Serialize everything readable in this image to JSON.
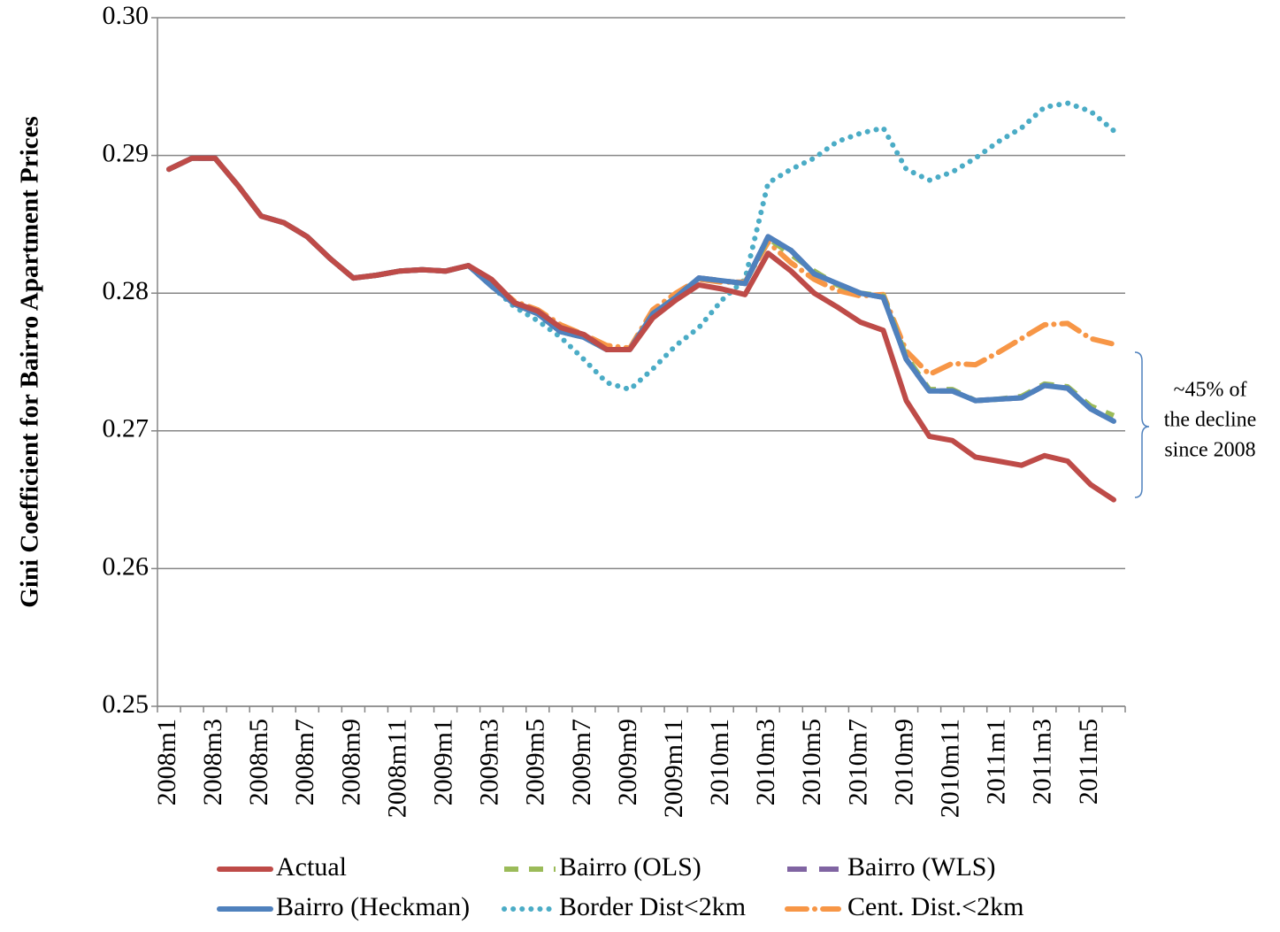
{
  "chart_data": {
    "type": "line",
    "y_label": "Gini Coefficient for Bairro Apartment Prices",
    "annotation": [
      "~45% of",
      "the decline",
      "since 2008"
    ],
    "categories": [
      "2008m1",
      null,
      "2008m3",
      null,
      "2008m5",
      null,
      "2008m7",
      null,
      "2008m9",
      null,
      "2008m11",
      null,
      "2009m1",
      null,
      "2009m3",
      null,
      "2009m5",
      null,
      "2009m7",
      null,
      "2009m9",
      null,
      "2009m11",
      null,
      "2010m1",
      null,
      "2010m3",
      null,
      "2010m5",
      null,
      "2010m7",
      null,
      "2010m9",
      null,
      "2010m11",
      null,
      "2011m1",
      null,
      "2011m3",
      null,
      "2011m5",
      null
    ],
    "ylim": [
      0.25,
      0.3
    ],
    "yticks": [
      0.25,
      0.26,
      0.27,
      0.28,
      0.29,
      {
        "value": 0.3,
        "label": "0.30"
      }
    ],
    "grid": true,
    "series": [
      {
        "name": "Actual",
        "color": "#be4b48",
        "style": "solid",
        "values": [
          0.289,
          0.2898,
          0.2898,
          0.2878,
          0.2856,
          0.2851,
          0.2841,
          0.2825,
          0.2811,
          0.2813,
          0.2816,
          0.2817,
          0.2816,
          0.282,
          0.281,
          0.2793,
          0.2787,
          0.2775,
          0.277,
          0.2759,
          0.2759,
          0.2782,
          0.2795,
          0.2806,
          0.2803,
          0.2799,
          0.2829,
          0.2816,
          0.28,
          0.279,
          0.2779,
          0.2773,
          0.2722,
          0.2696,
          0.2693,
          0.2681,
          0.2678,
          0.2675,
          0.2682,
          0.2678,
          0.2661,
          0.265
        ]
      },
      {
        "name": "Bairro (OLS)",
        "color": "#9bbb59",
        "style": "dashed",
        "values": [
          0.289,
          0.2898,
          0.2898,
          0.2878,
          0.2856,
          0.2851,
          0.2841,
          0.2825,
          0.2811,
          0.2813,
          0.2816,
          0.2817,
          0.2816,
          0.282,
          0.2806,
          0.2792,
          0.2785,
          0.2772,
          0.2768,
          0.2759,
          0.2759,
          0.2785,
          0.2797,
          0.2811,
          0.2809,
          0.2807,
          0.284,
          0.2828,
          0.2816,
          0.2806,
          0.28,
          0.2798,
          0.2754,
          0.273,
          0.273,
          0.2722,
          0.2723,
          0.2725,
          0.2734,
          0.2732,
          0.2718,
          0.2711
        ]
      },
      {
        "name": "Bairro (WLS)",
        "color": "#8064a2",
        "style": "longdash",
        "values": [
          0.289,
          0.2898,
          0.2898,
          0.2878,
          0.2856,
          0.2851,
          0.2841,
          0.2825,
          0.2811,
          0.2813,
          0.2816,
          0.2817,
          0.2816,
          0.282,
          0.2806,
          0.2792,
          0.2785,
          0.2772,
          0.2768,
          0.2759,
          0.2759,
          0.2785,
          0.2797,
          0.2811,
          0.2809,
          0.2807,
          0.2841,
          0.2831,
          0.2814,
          0.2807,
          0.28,
          0.2797,
          0.2752,
          0.2729,
          0.2729,
          0.2722,
          0.2723,
          0.2724,
          0.2733,
          0.2731,
          0.2716,
          0.2707
        ]
      },
      {
        "name": "Bairro (Heckman)",
        "color": "#4f81bd",
        "style": "solid",
        "values": [
          0.289,
          0.2898,
          0.2898,
          0.2878,
          0.2856,
          0.2851,
          0.2841,
          0.2825,
          0.2811,
          0.2813,
          0.2816,
          0.2817,
          0.2816,
          0.282,
          0.2805,
          0.2792,
          0.2785,
          0.2772,
          0.2768,
          0.2759,
          0.2759,
          0.2785,
          0.2797,
          0.2811,
          0.2809,
          0.2807,
          0.2841,
          0.2831,
          0.2814,
          0.2807,
          0.28,
          0.2797,
          0.2752,
          0.2729,
          0.2729,
          0.2722,
          0.2723,
          0.2724,
          0.2733,
          0.2731,
          0.2716,
          0.2707
        ]
      },
      {
        "name": "Border Dist<2km",
        "color": "#4bacc6",
        "style": "dotted",
        "values": [
          0.289,
          0.2898,
          0.2898,
          0.2878,
          0.2856,
          0.2851,
          0.2841,
          0.2825,
          0.2811,
          0.2813,
          0.2816,
          0.2817,
          0.2816,
          0.282,
          0.2805,
          0.279,
          0.278,
          0.2768,
          0.2752,
          0.2735,
          0.273,
          0.2745,
          0.2762,
          0.2775,
          0.2795,
          0.281,
          0.288,
          0.289,
          0.2898,
          0.291,
          0.2916,
          0.292,
          0.289,
          0.2882,
          0.2888,
          0.2898,
          0.291,
          0.292,
          0.2935,
          0.2938,
          0.2932,
          0.2918
        ]
      },
      {
        "name": "Cent. Dist.<2km",
        "color": "#f79646",
        "style": "dashdot",
        "values": [
          0.289,
          0.2898,
          0.2898,
          0.2878,
          0.2856,
          0.2851,
          0.2841,
          0.2825,
          0.2811,
          0.2813,
          0.2816,
          0.2817,
          0.2816,
          0.282,
          0.2808,
          0.2794,
          0.2788,
          0.2777,
          0.277,
          0.2762,
          0.276,
          0.2788,
          0.28,
          0.281,
          0.2808,
          0.2808,
          0.2837,
          0.2822,
          0.281,
          0.2802,
          0.2798,
          0.2799,
          0.2758,
          0.2741,
          0.2749,
          0.2748,
          0.2757,
          0.2767,
          0.2777,
          0.2778,
          0.2767,
          0.2763
        ]
      }
    ]
  }
}
